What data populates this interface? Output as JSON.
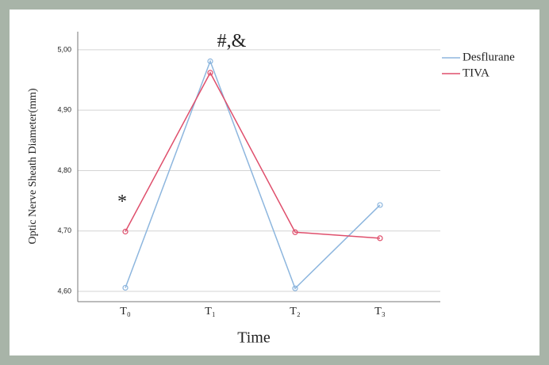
{
  "chart_data": {
    "type": "line",
    "x_label": "Time",
    "y_label": "Optic Nerve Sheath Diameter(mm)",
    "categories": [
      "T₀",
      "T₁",
      "T₂",
      "T₃"
    ],
    "series": [
      {
        "name": "Desflurane",
        "color": "#8db6de",
        "values": [
          4.606,
          4.981,
          4.605,
          4.743
        ]
      },
      {
        "name": "TIVA",
        "color": "#df4f6c",
        "values": [
          4.699,
          4.962,
          4.698,
          4.688
        ]
      }
    ],
    "ylim": [
      4.583,
      5.03
    ],
    "yticks": [
      {
        "value": 4.6,
        "label": "4,60"
      },
      {
        "value": 4.7,
        "label": "4,70"
      },
      {
        "value": 4.8,
        "label": "4,80"
      },
      {
        "value": 4.9,
        "label": "4,90"
      },
      {
        "value": 5.0,
        "label": "5,00"
      }
    ],
    "grid": true,
    "legend": "upper right",
    "annotations": [
      {
        "text": "*",
        "category": 0
      },
      {
        "text": "#,&",
        "category": 1
      }
    ]
  }
}
